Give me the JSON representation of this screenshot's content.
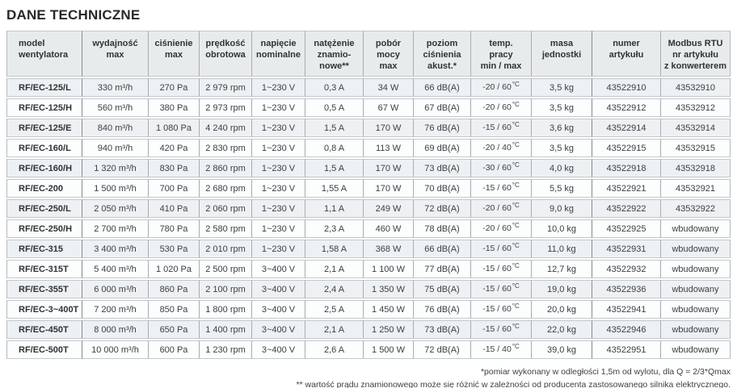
{
  "title": "DANE TECHNICZNE",
  "table": {
    "temp_unit": "°C",
    "columns": [
      {
        "id": "model",
        "label": "model\nwentylatora"
      },
      {
        "id": "airflow",
        "label": "wydajność\nmax"
      },
      {
        "id": "pressure",
        "label": "ciśnienie\nmax"
      },
      {
        "id": "speed",
        "label": "prędkość\nobrotowa"
      },
      {
        "id": "voltage",
        "label": "napięcie\nnominalne"
      },
      {
        "id": "current",
        "label": "natężenie\nznamio-\nnowe**"
      },
      {
        "id": "power",
        "label": "pobór\nmocy\nmax"
      },
      {
        "id": "noise",
        "label": "poziom\nciśnienia\nakust.*"
      },
      {
        "id": "temp",
        "label": "temp.\npracy\nmin / max"
      },
      {
        "id": "weight",
        "label": "masa\njednostki"
      },
      {
        "id": "article",
        "label": "numer\nartykułu"
      },
      {
        "id": "modbus",
        "label": "Modbus RTU\nnr artykułu\nz konwerterem"
      }
    ],
    "rows": [
      {
        "model": "RF/EC-125/L",
        "airflow": "330 m³/h",
        "pressure": "270 Pa",
        "speed": "2 979 rpm",
        "voltage": "1~230 V",
        "current": "0,3 A",
        "power": "34 W",
        "noise": "66 dB(A)",
        "temp": "-20 / 60",
        "weight": "3,5 kg",
        "article": "43522910",
        "modbus": "43532910"
      },
      {
        "model": "RF/EC-125/H",
        "airflow": "560 m³/h",
        "pressure": "380 Pa",
        "speed": "2 973 rpm",
        "voltage": "1~230 V",
        "current": "0,5 A",
        "power": "67 W",
        "noise": "67 dB(A)",
        "temp": "-20 / 60",
        "weight": "3,5 kg",
        "article": "43522912",
        "modbus": "43532912"
      },
      {
        "model": "RF/EC-125/E",
        "airflow": "840 m³/h",
        "pressure": "1 080 Pa",
        "speed": "4 240 rpm",
        "voltage": "1~230 V",
        "current": "1,5 A",
        "power": "170 W",
        "noise": "76 dB(A)",
        "temp": "-15 / 60",
        "weight": "3,6 kg",
        "article": "43522914",
        "modbus": "43532914"
      },
      {
        "model": "RF/EC-160/L",
        "airflow": "940 m³/h",
        "pressure": "420 Pa",
        "speed": "2 830 rpm",
        "voltage": "1~230 V",
        "current": "0,8 A",
        "power": "113 W",
        "noise": "69 dB(A)",
        "temp": "-20 / 40",
        "weight": "3,5 kg",
        "article": "43522915",
        "modbus": "43532915"
      },
      {
        "model": "RF/EC-160/H",
        "airflow": "1 320 m³/h",
        "pressure": "830 Pa",
        "speed": "2 860 rpm",
        "voltage": "1~230 V",
        "current": "1,5 A",
        "power": "170 W",
        "noise": "73 dB(A)",
        "temp": "-30 / 60",
        "weight": "4,0 kg",
        "article": "43522918",
        "modbus": "43532918"
      },
      {
        "model": "RF/EC-200",
        "airflow": "1 500 m³/h",
        "pressure": "700 Pa",
        "speed": "2 680 rpm",
        "voltage": "1~230 V",
        "current": "1,55 A",
        "power": "170 W",
        "noise": "70 dB(A)",
        "temp": "-15 / 60",
        "weight": "5,5 kg",
        "article": "43522921",
        "modbus": "43532921"
      },
      {
        "model": "RF/EC-250/L",
        "airflow": "2 050 m³/h",
        "pressure": "410 Pa",
        "speed": "2 060 rpm",
        "voltage": "1~230 V",
        "current": "1,1 A",
        "power": "249 W",
        "noise": "72 dB(A)",
        "temp": "-20 / 60",
        "weight": "9,0 kg",
        "article": "43522922",
        "modbus": "43532922"
      },
      {
        "model": "RF/EC-250/H",
        "airflow": "2 700 m³/h",
        "pressure": "780 Pa",
        "speed": "2 580 rpm",
        "voltage": "1~230 V",
        "current": "2,3 A",
        "power": "460 W",
        "noise": "78 dB(A)",
        "temp": "-20 / 60",
        "weight": "10,0 kg",
        "article": "43522925",
        "modbus": "wbudowany"
      },
      {
        "model": "RF/EC-315",
        "airflow": "3 400 m³/h",
        "pressure": "530 Pa",
        "speed": "2 010 rpm",
        "voltage": "1~230 V",
        "current": "1,58 A",
        "power": "368 W",
        "noise": "66 dB(A)",
        "temp": "-15 / 60",
        "weight": "11,0 kg",
        "article": "43522931",
        "modbus": "wbudowany"
      },
      {
        "model": "RF/EC-315T",
        "airflow": "5 400 m³/h",
        "pressure": "1 020 Pa",
        "speed": "2 500 rpm",
        "voltage": "3~400 V",
        "current": "2,1 A",
        "power": "1 100 W",
        "noise": "77 dB(A)",
        "temp": "-15 / 60",
        "weight": "12,7 kg",
        "article": "43522932",
        "modbus": "wbudowany"
      },
      {
        "model": "RF/EC-355T",
        "airflow": "6 000 m³/h",
        "pressure": "860 Pa",
        "speed": "2 100 rpm",
        "voltage": "3~400 V",
        "current": "2,4 A",
        "power": "1 350 W",
        "noise": "75 dB(A)",
        "temp": "-15 / 60",
        "weight": "19,0 kg",
        "article": "43522936",
        "modbus": "wbudowany"
      },
      {
        "model": "RF/EC-3~400T",
        "airflow": "7 200 m³/h",
        "pressure": "850 Pa",
        "speed": "1 800 rpm",
        "voltage": "3~400 V",
        "current": "2,5 A",
        "power": "1 450 W",
        "noise": "76 dB(A)",
        "temp": "-15 / 60",
        "weight": "20,0 kg",
        "article": "43522941",
        "modbus": "wbudowany"
      },
      {
        "model": "RF/EC-450T",
        "airflow": "8 000 m³/h",
        "pressure": "650 Pa",
        "speed": "1 400 rpm",
        "voltage": "3~400 V",
        "current": "2,1 A",
        "power": "1 250 W",
        "noise": "73 dB(A)",
        "temp": "-15 / 60",
        "weight": "22,0 kg",
        "article": "43522946",
        "modbus": "wbudowany"
      },
      {
        "model": "RF/EC-500T",
        "airflow": "10 000 m³/h",
        "pressure": "600 Pa",
        "speed": "1 230 rpm",
        "voltage": "3~400 V",
        "current": "2,6 A",
        "power": "1 500 W",
        "noise": "72 dB(A)",
        "temp": "-15 / 40",
        "weight": "39,0 kg",
        "article": "43522951",
        "modbus": "wbudowany"
      }
    ]
  },
  "footnotes": [
    "*pomiar wykonany w odległości 1,5m od wylotu, dla Q = 2/3*Qmax",
    "** wartość prądu znamionowego może się różnić w zależności od producenta zastosowanego silnika elektrycznego."
  ],
  "colors": {
    "header_bg": "#e8ebec",
    "row_odd_bg": "#eef1f3",
    "row_even_bg": "#fcfdfd",
    "grid_line": "#a7adb3",
    "section_divider": "#858c92",
    "text": "#3b4043"
  }
}
